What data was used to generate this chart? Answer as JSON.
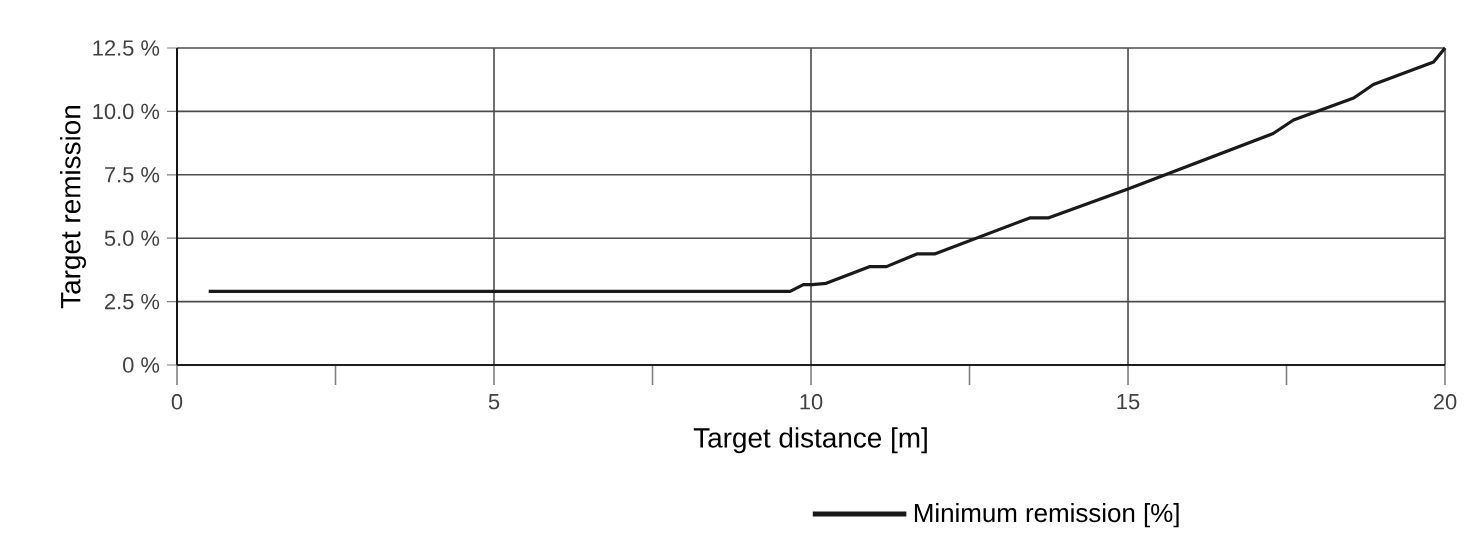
{
  "chart_data": {
    "type": "line",
    "xlabel": "Target distance [m]",
    "ylabel": "Target remission",
    "xlim": [
      0,
      20
    ],
    "ylim": [
      0,
      12.5
    ],
    "xticks": [
      0,
      {
        "value": 2.5,
        "label": null
      },
      5,
      {
        "value": 7.5,
        "label": null
      },
      10,
      {
        "value": 12.5,
        "label": null
      },
      15,
      {
        "value": 17.5,
        "label": null
      },
      20
    ],
    "yticks": [
      {
        "value": 0,
        "label": "0 %"
      },
      {
        "value": 2.5,
        "label": "2.5 %"
      },
      {
        "value": 5,
        "label": "5.0 %"
      },
      {
        "value": 7.5,
        "label": "7.5 %"
      },
      {
        "value": 10,
        "label": "10.0 %"
      },
      {
        "value": 12.5,
        "label": "12.5 %"
      }
    ],
    "grid": true,
    "legend": "bottom",
    "marker": "none",
    "line_style": "solid",
    "series": [
      {
        "name": "Minimum remission [%]",
        "color": "#1a1a1a",
        "x": [
          0.5,
          9.67,
          9.88,
          10.02,
          10.24,
          10.93,
          11.19,
          11.67,
          11.95,
          13.45,
          13.74,
          15.01,
          17.29,
          17.61,
          18.56,
          18.87,
          19.82,
          20
        ],
        "values": [
          2.9,
          2.9,
          3.17,
          3.17,
          3.22,
          3.88,
          3.88,
          4.38,
          4.38,
          5.8,
          5.8,
          6.95,
          9.13,
          9.66,
          10.53,
          11.06,
          11.95,
          12.5
        ]
      }
    ]
  }
}
